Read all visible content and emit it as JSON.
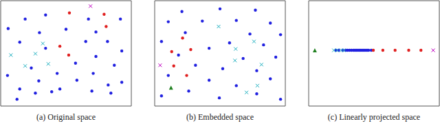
{
  "chart_data": [
    {
      "type": "scatter",
      "title": "(a) Original space",
      "xlim": [
        0,
        192
      ],
      "ylim": [
        0,
        155
      ],
      "tick_labels": false,
      "series": [
        {
          "color": "#2020e0",
          "marker": "circle",
          "x": [
            36,
            66,
            129,
            176,
            11,
            96,
            57,
            140,
            28,
            125,
            157,
            178,
            66,
            140,
            110,
            45,
            167,
            83,
            136,
            10,
            56,
            112,
            158,
            178,
            28,
            87,
            134,
            51,
            75,
            162,
            24
          ],
          "y": [
            128,
            134,
            128,
            128,
            114,
            113,
            108,
            109,
            94,
            95,
            95,
            81,
            85,
            73,
            63,
            56,
            60,
            48,
            48,
            45,
            37,
            38,
            31,
            35,
            25,
            25,
            22,
            19,
            21,
            19,
            10
          ]
        },
        {
          "color": "#e02020",
          "marker": "circle",
          "x": [
            101,
            152,
            155,
            87,
            100
          ],
          "y": [
            137,
            135,
            117,
            88,
            75
          ]
        },
        {
          "color": "#20b0c0",
          "marker": "x",
          "x": [
            62,
            15,
            51,
            36,
            70
          ],
          "y": [
            92,
            75,
            77,
            59,
            62
          ]
        },
        {
          "color": "#c000c0",
          "marker": "x",
          "x": [
            132
          ],
          "y": [
            147
          ]
        }
      ]
    },
    {
      "type": "scatter",
      "title": "(b) Embedded space",
      "xlim": [
        0,
        192
      ],
      "ylim": [
        0,
        155
      ],
      "tick_labels": false,
      "series": [
        {
          "color": "#2020e0",
          "marker": "circle",
          "x": [
            40,
            96,
            148,
            20,
            70,
            120,
            170,
            45,
            140,
            185,
            10,
            110,
            160,
            80,
            35,
            130,
            178,
            60,
            100,
            150,
            20,
            80,
            170,
            120,
            50,
            150,
            95,
            10,
            185
          ],
          "y": [
            139,
            143,
            141,
            124,
            125,
            126,
            122,
            108,
            106,
            105,
            95,
            93,
            90,
            85,
            75,
            70,
            72,
            60,
            55,
            52,
            45,
            38,
            40,
            30,
            22,
            18,
            12,
            15,
            10
          ]
        },
        {
          "color": "#e02020",
          "marker": "circle",
          "x": [
            41,
            25,
            53,
            28,
            47
          ],
          "y": [
            100,
            80,
            83,
            59,
            45
          ]
        },
        {
          "color": "#20b0c0",
          "marker": "x",
          "x": [
            94,
            119,
            146,
            118,
            157,
            151,
            135
          ],
          "y": [
            117,
            84,
            95,
            67,
            61,
            30,
            20
          ]
        },
        {
          "color": "#c000c0",
          "marker": "x",
          "x": [
            8
          ],
          "y": [
            60
          ]
        },
        {
          "color": "#208020",
          "marker": "triangle",
          "x": [
            24
          ],
          "y": [
            27
          ]
        }
      ]
    },
    {
      "type": "scatter",
      "title": "(c) Linearly projected space",
      "xlim": [
        0,
        192
      ],
      "ylim": [
        0,
        155
      ],
      "tick_labels": false,
      "series": [
        {
          "color": "#208020",
          "marker": "triangle",
          "x": [
            9
          ],
          "y": [
            82
          ]
        },
        {
          "color": "#2020e0",
          "marker": "circle",
          "x": [
            40,
            44,
            50,
            54,
            57,
            60,
            63,
            66,
            68,
            70,
            72,
            74,
            76,
            78,
            80,
            82,
            84,
            86,
            88,
            92
          ],
          "y": [
            82,
            82,
            82,
            82,
            82,
            82,
            82,
            82,
            82,
            82,
            82,
            82,
            82,
            82,
            82,
            82,
            82,
            82,
            82,
            82
          ]
        },
        {
          "color": "#20b0c0",
          "marker": "x",
          "x": [
            37,
            42,
            48,
            52
          ],
          "y": [
            82,
            82,
            82,
            82
          ]
        },
        {
          "color": "#e02020",
          "marker": "circle",
          "x": [
            95,
            109,
            127,
            147,
            165
          ],
          "y": [
            82,
            82,
            82,
            82,
            82
          ]
        },
        {
          "color": "#c000c0",
          "marker": "x",
          "x": [
            183
          ],
          "y": [
            82
          ]
        }
      ]
    }
  ]
}
